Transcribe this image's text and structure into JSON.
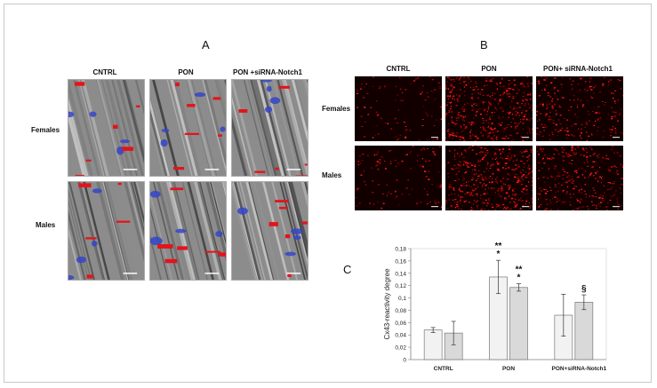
{
  "panel_a": {
    "letter": "A",
    "columns": [
      "CNTRL",
      "PON",
      "PON +siRNA-Notch1"
    ],
    "rows": [
      "Females",
      "Males"
    ]
  },
  "panel_b": {
    "letter": "B",
    "columns": [
      "CNTRL",
      "PON",
      "PON+ siRNA-Notch1"
    ],
    "rows": [
      "Females",
      "Males"
    ]
  },
  "panel_c": {
    "letter": "C"
  },
  "chart_data": {
    "type": "bar",
    "categories": [
      "CNTRL",
      "PON",
      "PON+siRNA-Notch1"
    ],
    "series": [
      {
        "values": [
          0.048,
          0.134,
          0.072
        ],
        "errors": [
          0.004,
          0.027,
          0.034
        ],
        "color": "#f2f2f2"
      },
      {
        "values": [
          0.043,
          0.117,
          0.093
        ],
        "errors": [
          0.019,
          0.006,
          0.012
        ],
        "color": "#d9d9d9"
      }
    ],
    "annotations": [
      {
        "category": 1,
        "series": 0,
        "label": "**\n*"
      },
      {
        "category": 1,
        "series": 1,
        "label": "**\n*"
      },
      {
        "category": 2,
        "series": 1,
        "label": "§"
      }
    ],
    "ylabel": "Cx43-reactivity degree",
    "yticks": [
      "0",
      "0,02",
      "0,04",
      "0,06",
      "0,08",
      "0,1",
      "0,12",
      "0,14",
      "0,16",
      "0,18"
    ],
    "ylim": [
      0,
      0.18
    ],
    "xlabel": "",
    "grid": false
  }
}
